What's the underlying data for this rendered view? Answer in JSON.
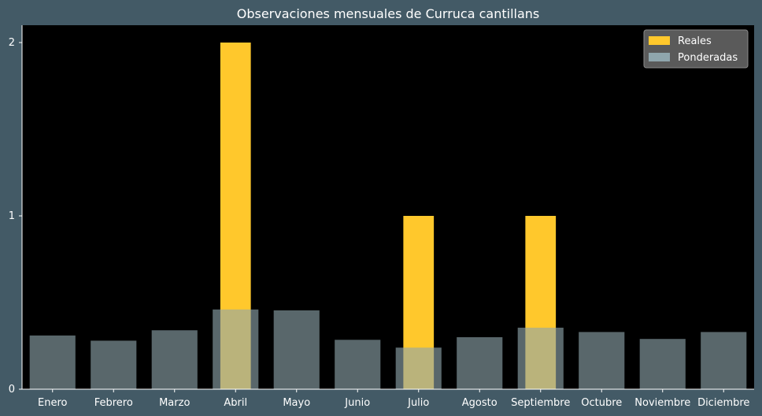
{
  "chart_data": {
    "type": "bar",
    "title": "Observaciones mensuales de Curruca cantillans",
    "xlabel": "",
    "ylabel": "",
    "categories": [
      "Enero",
      "Febrero",
      "Marzo",
      "Abril",
      "Mayo",
      "Junio",
      "Julio",
      "Agosto",
      "Septiembre",
      "Octubre",
      "Noviembre",
      "Diciembre"
    ],
    "series": [
      {
        "name": "Reales",
        "color": "#ffc82c",
        "values": [
          0,
          0,
          0,
          2,
          0,
          0,
          1,
          0,
          1,
          0,
          0,
          0
        ]
      },
      {
        "name": "Ponderadas",
        "color": "#8fa6ad",
        "values": [
          0.31,
          0.28,
          0.34,
          0.46,
          0.455,
          0.285,
          0.24,
          0.3,
          0.355,
          0.33,
          0.29,
          0.33
        ]
      }
    ],
    "ylim": [
      0,
      2.1
    ],
    "yticks": [
      0,
      1,
      2
    ],
    "grid": false,
    "legend_position": "top-right",
    "colors": {
      "figure_background": "#435a66",
      "plot_background": "#000000",
      "text": "#ffffff",
      "legend_background": "#5a5a5a"
    }
  }
}
